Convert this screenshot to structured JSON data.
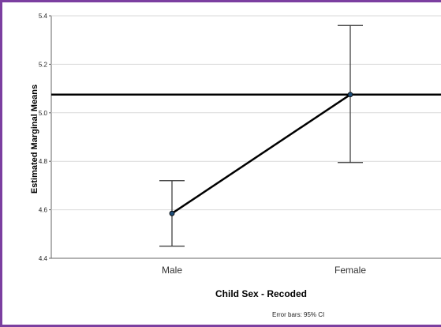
{
  "chart_data": {
    "type": "line",
    "categories": [
      "Male",
      "Female"
    ],
    "series": [
      {
        "values": [
          4.585,
          5.075
        ],
        "ci_lower": [
          4.45,
          4.795
        ],
        "ci_upper": [
          4.72,
          5.36
        ]
      }
    ],
    "reference_line": 5.075,
    "xlabel": "Child Sex - Recoded",
    "ylabel": "Estimated Marginal Means",
    "ylim": [
      4.4,
      5.4
    ],
    "yticks": [
      "4.4",
      "4.6",
      "4.8",
      "5.0",
      "5.2",
      "5.4"
    ],
    "note": "Error bars: 95% CI",
    "grid": true,
    "colors": {
      "line": "#000000",
      "marker": "#1f4e79",
      "errorbar": "#333333",
      "grid": "#d9d9d9"
    }
  }
}
